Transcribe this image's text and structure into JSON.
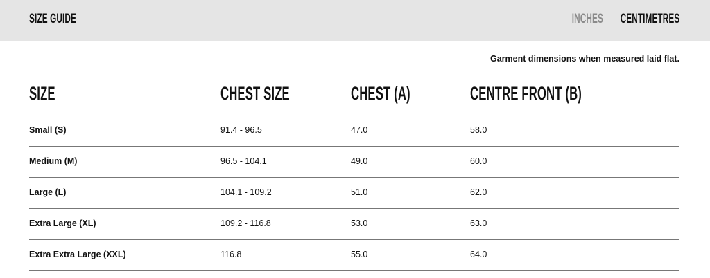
{
  "header": {
    "title": "SIZE GUIDE",
    "units": [
      {
        "label": "INCHES",
        "active": false
      },
      {
        "label": "CENTIMETRES",
        "active": true
      }
    ]
  },
  "note": "Garment dimensions when measured laid flat.",
  "table": {
    "columns": [
      "SIZE",
      "CHEST SIZE",
      "CHEST (A)",
      "CENTRE FRONT (B)"
    ],
    "rows": [
      [
        "Small (S)",
        "91.4 - 96.5",
        "47.0",
        "58.0"
      ],
      [
        "Medium (M)",
        "96.5 - 104.1",
        "49.0",
        "60.0"
      ],
      [
        "Large (L)",
        "104.1 - 109.2",
        "51.0",
        "62.0"
      ],
      [
        "Extra Large (XL)",
        "109.2 - 116.8",
        "53.0",
        "63.0"
      ],
      [
        "Extra Extra Large (XXL)",
        "116.8",
        "55.0",
        "64.0"
      ]
    ]
  }
}
